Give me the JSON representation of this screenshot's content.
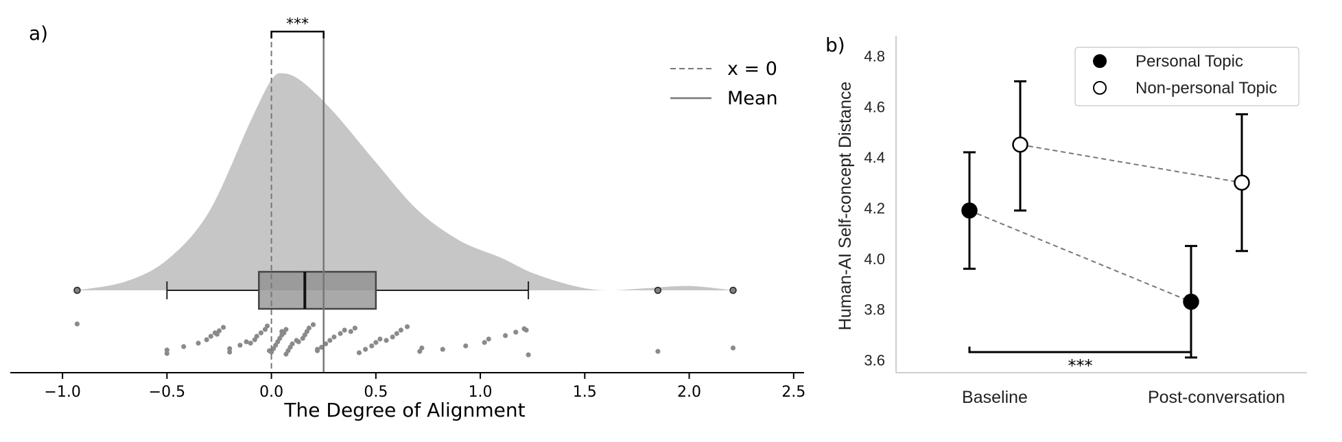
{
  "chart_data": [
    {
      "type": "raincloud",
      "panel_label": "a)",
      "title": "",
      "xlabel": "The Degree of Alignment",
      "ylabel": "",
      "xlim": [
        -1.25,
        2.55
      ],
      "x_ticks": [
        -1.0,
        -0.5,
        0.0,
        0.5,
        1.0,
        1.5,
        2.0,
        2.5
      ],
      "x_tick_labels": [
        "−1.0",
        "−0.5",
        "0.0",
        "0.5",
        "1.0",
        "1.5",
        "2.0",
        "2.5"
      ],
      "legend": {
        "placement": "top-right",
        "entries": [
          {
            "label": "x = 0",
            "style": "dashed"
          },
          {
            "label": "Mean",
            "style": "solid"
          }
        ]
      },
      "reference_lines": [
        {
          "name": "x = 0",
          "x": 0.0
        },
        {
          "name": "Mean",
          "x": 0.25
        }
      ],
      "significance": {
        "label": "***",
        "from_x": 0.0,
        "to_x": 0.25
      },
      "box": {
        "whisker_low": -0.5,
        "q1": -0.06,
        "median": 0.16,
        "q3": 0.5,
        "whisker_high": 1.23
      },
      "outliers": [
        -0.93,
        1.85,
        2.21
      ],
      "density": {
        "x": [
          -0.93,
          -0.7,
          -0.5,
          -0.3,
          -0.1,
          0.0,
          0.06,
          0.15,
          0.3,
          0.5,
          0.7,
          0.9,
          1.1,
          1.25,
          1.45,
          1.6,
          1.8,
          2.0,
          2.21
        ],
        "y": [
          0.0,
          0.04,
          0.14,
          0.36,
          0.78,
          0.97,
          1.0,
          0.96,
          0.82,
          0.59,
          0.37,
          0.23,
          0.15,
          0.08,
          0.02,
          0.0,
          0.01,
          0.02,
          0.0
        ]
      },
      "points": [
        -0.93,
        -0.5,
        -0.5,
        -0.42,
        -0.35,
        -0.31,
        -0.29,
        -0.27,
        -0.26,
        -0.25,
        -0.23,
        -0.2,
        -0.2,
        -0.15,
        -0.12,
        -0.1,
        -0.08,
        -0.07,
        -0.05,
        -0.03,
        -0.02,
        -0.01,
        0.0,
        0.01,
        0.02,
        0.03,
        0.04,
        0.05,
        0.05,
        0.06,
        0.07,
        0.07,
        0.08,
        0.09,
        0.1,
        0.12,
        0.13,
        0.15,
        0.16,
        0.17,
        0.18,
        0.2,
        0.22,
        0.22,
        0.24,
        0.26,
        0.28,
        0.3,
        0.33,
        0.35,
        0.38,
        0.4,
        0.42,
        0.45,
        0.48,
        0.5,
        0.52,
        0.55,
        0.58,
        0.6,
        0.62,
        0.65,
        0.71,
        0.72,
        0.82,
        0.93,
        1.02,
        1.04,
        1.12,
        1.17,
        1.21,
        1.22,
        1.23,
        1.85,
        2.21
      ]
    },
    {
      "type": "errorbar",
      "panel_label": "b)",
      "title": "",
      "xlabel": "",
      "ylabel": "Human-AI Self-concept Distance",
      "ylim": [
        3.55,
        4.88
      ],
      "y_ticks": [
        3.6,
        3.8,
        4.0,
        4.2,
        4.4,
        4.6,
        4.8
      ],
      "y_tick_labels": [
        "3.6",
        "3.8",
        "4.0",
        "4.2",
        "4.4",
        "4.6",
        "4.8"
      ],
      "categories": [
        "Baseline",
        "Post-conversation"
      ],
      "legend": {
        "placement": "top-right"
      },
      "series": [
        {
          "name": "Personal Topic",
          "marker": "filled",
          "values": [
            4.19,
            3.83
          ],
          "lower": [
            3.96,
            3.61
          ],
          "upper": [
            4.42,
            4.05
          ]
        },
        {
          "name": "Non-personal Topic",
          "marker": "open",
          "values": [
            4.45,
            4.3
          ],
          "lower": [
            4.19,
            4.03
          ],
          "upper": [
            4.7,
            4.57
          ]
        }
      ],
      "significance": {
        "label": "***",
        "between": [
          "Baseline",
          "Post-conversation"
        ],
        "series": "Personal Topic"
      }
    }
  ]
}
